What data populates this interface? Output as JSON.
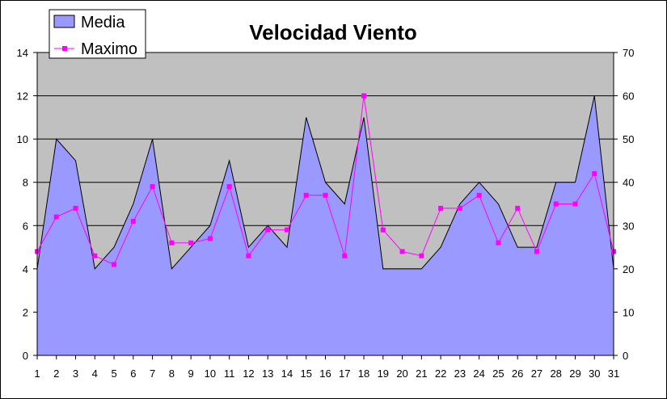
{
  "chart_data": {
    "type": "area",
    "title": "Velocidad Viento",
    "x": [
      1,
      2,
      3,
      4,
      5,
      6,
      7,
      8,
      9,
      10,
      11,
      12,
      13,
      14,
      15,
      16,
      17,
      18,
      19,
      20,
      21,
      22,
      23,
      24,
      25,
      26,
      27,
      28,
      29,
      30,
      31
    ],
    "series": [
      {
        "name": "Media",
        "type": "area",
        "axis": "left",
        "color": "#9999ff",
        "values": [
          4,
          10,
          9,
          4,
          5,
          7,
          10,
          4,
          5,
          6,
          9,
          5,
          6,
          5,
          11,
          8,
          7,
          11,
          4,
          4,
          4,
          5,
          7,
          8,
          7,
          5,
          5,
          8,
          8,
          12,
          4
        ]
      },
      {
        "name": "Maximo",
        "type": "line",
        "axis": "right",
        "color": "#ff00ff",
        "values": [
          24,
          32,
          34,
          23,
          21,
          31,
          39,
          26,
          26,
          27,
          39,
          23,
          29,
          29,
          37,
          37,
          23,
          60,
          29,
          24,
          23,
          34,
          34,
          37,
          26,
          34,
          24,
          35,
          35,
          42,
          24
        ]
      }
    ],
    "y_left": {
      "min": 0,
      "max": 14,
      "ticks": [
        0,
        2,
        4,
        6,
        8,
        10,
        12,
        14
      ]
    },
    "y_right": {
      "min": 0,
      "max": 70,
      "ticks": [
        0,
        10,
        20,
        30,
        40,
        50,
        60,
        70
      ]
    },
    "grid": true,
    "plot_background": "#c0c0c0",
    "legend_position": "top-left"
  }
}
